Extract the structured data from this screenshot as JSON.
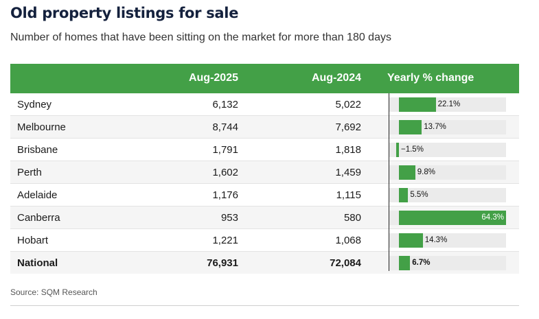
{
  "title": "Old property listings for sale",
  "subtitle": "Number of homes that have been sitting on the market for more than 180 days",
  "source": "Source: SQM Research",
  "columns": {
    "aug2025": "Aug-2025",
    "aug2024": "Aug-2024",
    "change": "Yearly % change"
  },
  "colors": {
    "header": "#43a047",
    "bar": "#43a047",
    "track": "#ebebeb"
  },
  "chart_data": {
    "type": "table",
    "title": "Old property listings for sale",
    "subtitle": "Number of homes that have been sitting on the market for more than 180 days",
    "headers": [
      "",
      "Aug-2025",
      "Aug-2024",
      "Yearly % change"
    ],
    "rows": [
      {
        "city": "Sydney",
        "aug2025": "6,132",
        "aug2024": "5,022",
        "change": 22.1,
        "change_label": "22.1%"
      },
      {
        "city": "Melbourne",
        "aug2025": "8,744",
        "aug2024": "7,692",
        "change": 13.7,
        "change_label": "13.7%"
      },
      {
        "city": "Brisbane",
        "aug2025": "1,791",
        "aug2024": "1,818",
        "change": -1.5,
        "change_label": "−1.5%"
      },
      {
        "city": "Perth",
        "aug2025": "1,602",
        "aug2024": "1,459",
        "change": 9.8,
        "change_label": "9.8%"
      },
      {
        "city": "Adelaide",
        "aug2025": "1,176",
        "aug2024": "1,115",
        "change": 5.5,
        "change_label": "5.5%"
      },
      {
        "city": "Canberra",
        "aug2025": "953",
        "aug2024": "580",
        "change": 64.3,
        "change_label": "64.3%"
      },
      {
        "city": "Hobart",
        "aug2025": "1,221",
        "aug2024": "1,068",
        "change": 14.3,
        "change_label": "14.3%"
      },
      {
        "city": "National",
        "aug2025": "76,931",
        "aug2024": "72,084",
        "change": 6.7,
        "change_label": "6.7%",
        "total": true
      }
    ],
    "bar_range": [
      -2.5,
      64.3
    ]
  }
}
